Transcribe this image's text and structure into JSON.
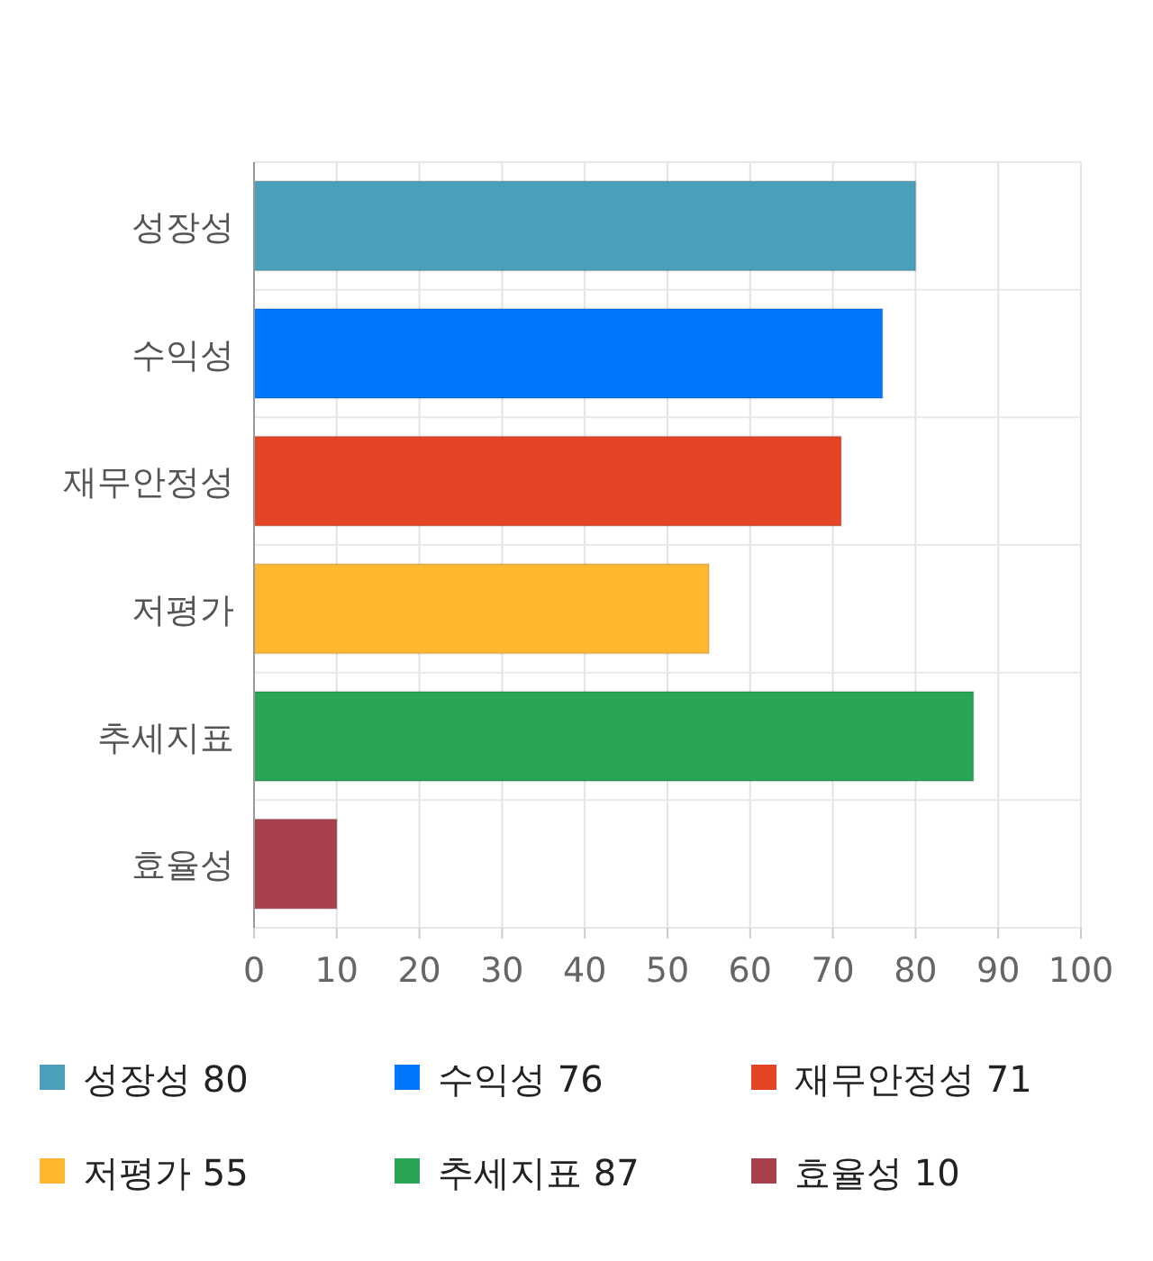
{
  "chart_data": {
    "type": "bar",
    "orientation": "horizontal",
    "stacked": true,
    "categories": [
      "성장성",
      "수익성",
      "재무안정성",
      "저평가",
      "추세지표",
      "효율성"
    ],
    "series": [
      {
        "name": "성장성 80",
        "color": "#4aa0b9",
        "values": [
          80,
          null,
          null,
          null,
          null,
          null
        ]
      },
      {
        "name": "수익성 76",
        "color": "#0077ff",
        "values": [
          null,
          76,
          null,
          null,
          null,
          null
        ]
      },
      {
        "name": "재무안정성 71",
        "color": "#e34423",
        "values": [
          null,
          null,
          71,
          null,
          null,
          null
        ]
      },
      {
        "name": "저평가 55",
        "color": "#ffb830",
        "values": [
          null,
          null,
          null,
          55,
          null,
          null
        ]
      },
      {
        "name": "추세지표 87",
        "color": "#28a655",
        "values": [
          null,
          null,
          null,
          null,
          87,
          null
        ]
      },
      {
        "name": "효율성 10",
        "color": "#a8404d",
        "values": [
          null,
          null,
          null,
          null,
          null,
          10
        ]
      }
    ],
    "xlim": [
      0,
      100
    ],
    "xticks": [
      0,
      10,
      20,
      30,
      40,
      50,
      60,
      70,
      80,
      90,
      100
    ],
    "grid": true,
    "legend": "bottom"
  }
}
